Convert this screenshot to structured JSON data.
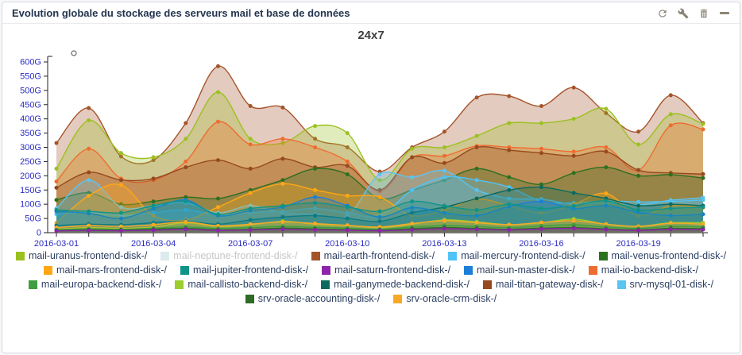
{
  "header": {
    "title": "Evolution globale du stockage des serveurs mail et base de données",
    "toolbar_icons": [
      "refresh",
      "wrench",
      "trash",
      "minimize"
    ]
  },
  "chart_data": {
    "type": "area",
    "title": "24x7",
    "x": [
      "2016-03-01",
      "2016-03-02",
      "2016-03-03",
      "2016-03-04",
      "2016-03-05",
      "2016-03-06",
      "2016-03-07",
      "2016-03-08",
      "2016-03-09",
      "2016-03-10",
      "2016-03-11",
      "2016-03-12",
      "2016-03-13",
      "2016-03-14",
      "2016-03-15",
      "2016-03-16",
      "2016-03-17",
      "2016-03-18",
      "2016-03-19",
      "2016-03-20",
      "2016-03-21"
    ],
    "x_tick_labels": [
      "2016-03-01",
      "2016-03-04",
      "2016-03-07",
      "2016-03-10",
      "2016-03-13",
      "2016-03-16",
      "2016-03-19"
    ],
    "y_tick_values": [
      0,
      50,
      100,
      150,
      200,
      250,
      300,
      350,
      400,
      450,
      500,
      550,
      600
    ],
    "y_tick_labels": [
      "0",
      "50G",
      "100G",
      "150G",
      "200G",
      "250G",
      "300G",
      "350G",
      "400G",
      "450G",
      "500G",
      "550G",
      "600G"
    ],
    "ylim": [
      0,
      620
    ],
    "unit": "gigabytes",
    "grid": false,
    "legend_position": "bottom",
    "axis_label_color": "#2b2bc4",
    "series": [
      {
        "name": "mail-uranus-frontend-disk-/",
        "color": "#9bc121",
        "values": [
          225,
          395,
          280,
          265,
          330,
          494,
          330,
          315,
          375,
          350,
          185,
          295,
          300,
          340,
          385,
          385,
          400,
          435,
          310,
          416,
          382
        ]
      },
      {
        "name": "mail-neptune-frontend-disk-/",
        "color": "#dcebed",
        "hidden": true,
        "values": []
      },
      {
        "name": "mail-earth-frontend-disk-/",
        "color": "#a5542a",
        "values": [
          315,
          438,
          268,
          255,
          385,
          585,
          445,
          440,
          330,
          300,
          215,
          300,
          355,
          475,
          480,
          445,
          510,
          420,
          355,
          483,
          385
        ]
      },
      {
        "name": "mail-mercury-frontend-disk-/",
        "color": "#4fc3f7",
        "values": [
          65,
          72,
          60,
          70,
          80,
          62,
          70,
          75,
          85,
          70,
          60,
          150,
          195,
          185,
          160,
          110,
          105,
          112,
          108,
          110,
          115
        ]
      },
      {
        "name": "mail-venus-frontend-disk-/",
        "color": "#2d7020",
        "values": [
          115,
          140,
          100,
          110,
          125,
          120,
          150,
          185,
          225,
          205,
          120,
          150,
          185,
          225,
          195,
          170,
          210,
          230,
          200,
          204,
          192
        ]
      },
      {
        "name": "mail-mars-frontend-disk-/",
        "color": "#ffa713",
        "values": [
          35,
          130,
          168,
          60,
          45,
          90,
          140,
          172,
          150,
          130,
          125,
          60,
          80,
          118,
          95,
          70,
          100,
          138,
          60,
          95,
          88
        ]
      },
      {
        "name": "mail-jupiter-frontend-disk-/",
        "color": "#0e9488",
        "values": [
          80,
          75,
          70,
          95,
          110,
          65,
          85,
          95,
          105,
          90,
          75,
          110,
          95,
          80,
          100,
          85,
          95,
          112,
          80,
          85,
          90
        ]
      },
      {
        "name": "mail-saturn-frontend-disk-/",
        "color": "#8e24aa",
        "values": [
          6,
          8,
          7,
          9,
          12,
          8,
          10,
          12,
          10,
          9,
          7,
          10,
          14,
          12,
          10,
          13,
          15,
          11,
          8,
          12,
          11
        ]
      },
      {
        "name": "mail-sun-master-disk-/",
        "color": "#1c7ed6",
        "values": [
          75,
          68,
          50,
          85,
          115,
          60,
          78,
          90,
          125,
          95,
          55,
          88,
          70,
          60,
          92,
          110,
          85,
          95,
          72,
          60,
          65
        ]
      },
      {
        "name": "mail-io-backend-disk-/",
        "color": "#ef6c30",
        "values": [
          180,
          295,
          190,
          185,
          250,
          390,
          310,
          330,
          300,
          250,
          145,
          265,
          270,
          305,
          300,
          295,
          285,
          300,
          220,
          377,
          363
        ]
      },
      {
        "name": "mail-europa-backend-disk-/",
        "color": "#3f9e3f",
        "values": [
          10,
          14,
          12,
          16,
          20,
          15,
          18,
          22,
          19,
          16,
          12,
          20,
          25,
          22,
          18,
          24,
          28,
          20,
          15,
          22,
          20
        ]
      },
      {
        "name": "mail-callisto-backend-disk-/",
        "color": "#9ccc2e",
        "values": [
          12,
          18,
          15,
          20,
          35,
          22,
          28,
          40,
          30,
          25,
          18,
          30,
          45,
          38,
          28,
          35,
          48,
          30,
          22,
          35,
          35
        ]
      },
      {
        "name": "mail-ganymede-backend-disk-/",
        "color": "#0b6a5d",
        "values": [
          25,
          30,
          28,
          35,
          40,
          30,
          45,
          55,
          60,
          50,
          40,
          70,
          90,
          120,
          150,
          160,
          140,
          120,
          95,
          100,
          95
        ]
      },
      {
        "name": "mail-titan-gateway-disk-/",
        "color": "#96491f",
        "values": [
          158,
          212,
          185,
          190,
          230,
          255,
          225,
          260,
          230,
          235,
          150,
          265,
          245,
          300,
          290,
          280,
          270,
          285,
          220,
          210,
          206
        ]
      },
      {
        "name": "srv-mysql-01-disk-/",
        "color": "#5bc5f2",
        "values": [
          85,
          185,
          90,
          95,
          105,
          70,
          95,
          70,
          65,
          60,
          205,
          195,
          218,
          150,
          120,
          118,
          100,
          105,
          98,
          114,
          123
        ]
      },
      {
        "name": "srv-oracle-accounting-disk-/",
        "color": "#2e6b27",
        "values": [
          8,
          10,
          9,
          12,
          15,
          10,
          12,
          16,
          13,
          11,
          9,
          14,
          18,
          15,
          12,
          16,
          18,
          13,
          10,
          15,
          14
        ]
      },
      {
        "name": "srv-oracle-crm-disk-/",
        "color": "#f9a825",
        "values": [
          18,
          25,
          22,
          28,
          38,
          24,
          30,
          38,
          32,
          26,
          20,
          32,
          42,
          35,
          28,
          36,
          42,
          30,
          22,
          33,
          30
        ]
      }
    ]
  }
}
